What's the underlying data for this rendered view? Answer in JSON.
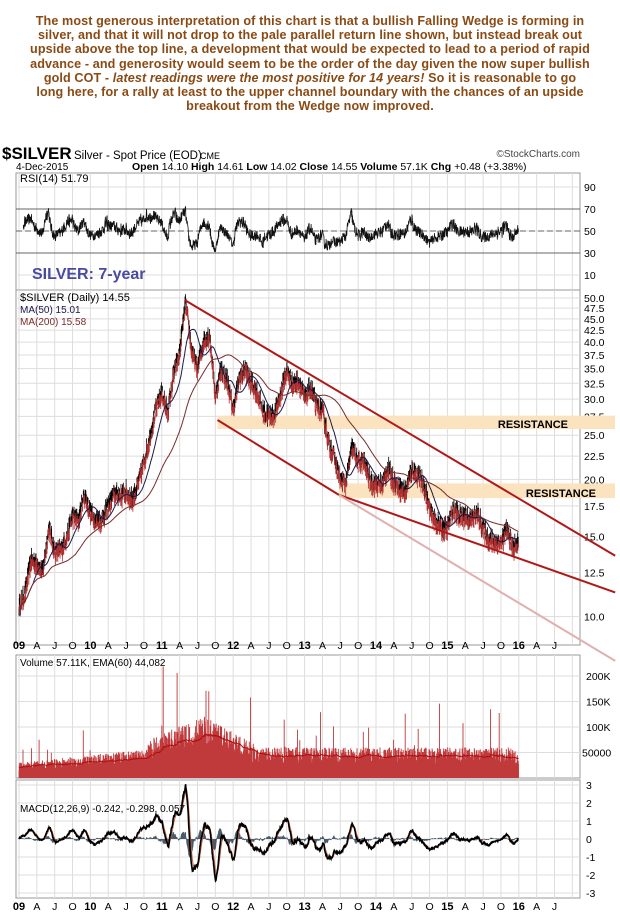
{
  "annotation": {
    "part1": "The most generous interpretation of this chart is that a bullish Falling Wedge is forming in silver, and that it will not drop to the pale parallel return line shown, but instead break out upside above the top line, a development that would be expected to lead to a period of rapid advance - and generosity would seem to be the order of the day given the now super bullish gold COT - ",
    "italic": "latest readings were the most positive for 14 years!",
    "part2": " So it is reasonable to go long here, for a rally at least to the upper channel boundary with the chances of an upside breakout from the Wedge now improved."
  },
  "header": {
    "symbol": "$SILVER",
    "description": "Silver - Spot Price (EOD)",
    "exchange": "CME",
    "watermark": "©StockCharts.com",
    "date": "4-Dec-2015",
    "open_label": "Open",
    "open": "14.10",
    "high_label": "High",
    "high": "14.61",
    "low_label": "Low",
    "low": "14.02",
    "close_label": "Close",
    "close": "14.55",
    "volume_label": "Volume",
    "volume": "57.1K",
    "chg_label": "Chg",
    "chg": "+0.48 (+3.38%)"
  },
  "overlay_title": "SILVER: 7-year",
  "colors": {
    "annotation": "#8a4a14",
    "price_up": "#000000",
    "price_down": "#b03030",
    "ma50": "#1a1a4a",
    "ma200": "#7a2a2a",
    "trendline": "#b01818",
    "return_line": "#e0b0b0",
    "resistance": "#fbe3c0",
    "volume": "#c0393b",
    "title_overlay": "#4a4aa0"
  },
  "chart_data": [
    {
      "type": "line",
      "panel": "rsi",
      "legend": "RSI(14) 51.79",
      "ylim": [
        0,
        100
      ],
      "ticks": [
        "90",
        "70",
        "50",
        "30",
        "10"
      ],
      "reference_levels": [
        70,
        50,
        30
      ],
      "last": 51.79
    },
    {
      "type": "line",
      "panel": "price",
      "scale": "log",
      "legend": "$SILVER (Daily) 14.55",
      "ma_legends": [
        "MA(50) 15.01",
        "MA(200) 15.58"
      ],
      "ticks": [
        "50.0",
        "47.5",
        "45.0",
        "42.5",
        "40.0",
        "37.5",
        "35.0",
        "32.5",
        "30.0",
        "27.5",
        "25.0",
        "22.5",
        "20.0",
        "17.5",
        "15.0",
        "12.5",
        "10.0"
      ],
      "x_start": "2009-01",
      "x_step": "month",
      "monthly_close": [
        11.2,
        13.2,
        13.1,
        12.5,
        15.6,
        13.9,
        13.9,
        14.9,
        16.6,
        16.2,
        18.5,
        16.9,
        16.2,
        16.3,
        17.5,
        18.6,
        18.4,
        18.7,
        18.0,
        19.4,
        21.8,
        24.6,
        28.4,
        30.9,
        27.9,
        33.9,
        37.9,
        48.6,
        38.2,
        34.9,
        40.1,
        41.5,
        30.4,
        34.8,
        32.8,
        28.2,
        33.2,
        34.9,
        32.5,
        31.1,
        28.1,
        27.5,
        27.7,
        30.8,
        34.6,
        32.2,
        32.9,
        30.0,
        31.9,
        28.7,
        28.3,
        24.1,
        22.3,
        19.8,
        19.7,
        23.5,
        21.7,
        21.8,
        19.8,
        19.5,
        19.4,
        21.1,
        19.7,
        19.1,
        18.7,
        21.0,
        20.4,
        19.5,
        17.1,
        16.2,
        15.6,
        15.6,
        17.2,
        16.6,
        16.6,
        16.3,
        16.8,
        15.6,
        14.7,
        14.6,
        14.5,
        15.5,
        14.1,
        14.55
      ],
      "trendlines": [
        {
          "name": "wedge-upper",
          "from": [
            "2011.32",
            49.5
          ],
          "to": [
            "2017.35",
            13.6
          ]
        },
        {
          "name": "wedge-lower",
          "from": [
            "2013.48",
            18.5
          ],
          "to": [
            "2017.35",
            11.3
          ]
        },
        {
          "name": "channel-lower",
          "from": [
            "2011.78",
            27.0
          ],
          "to": [
            "2013.48",
            18.5
          ]
        },
        {
          "name": "return-line",
          "from": [
            "2013.48",
            18.5
          ],
          "to": [
            "2017.35",
            8.0
          ]
        }
      ],
      "resistance_zones": [
        {
          "label": "RESISTANCE",
          "low": 25.8,
          "high": 27.6,
          "from": "2011.78"
        },
        {
          "label": "RESISTANCE",
          "low": 18.2,
          "high": 19.6,
          "from": "2013.48"
        }
      ]
    },
    {
      "type": "bar",
      "panel": "volume",
      "legend": "Volume 57.11K, EMA(60) 44,082",
      "ticks": [
        "200K",
        "150K",
        "100K",
        "50000"
      ],
      "last": 57110,
      "ema": 44082
    },
    {
      "type": "line",
      "panel": "macd",
      "legend": "MACD(12,26,9) -0.242, -0.298, 0.057",
      "ticks": [
        "3",
        "2",
        "1",
        "0",
        "-1",
        "-2",
        "-3"
      ],
      "macd": -0.242,
      "signal": -0.298,
      "histogram": 0.057
    }
  ],
  "x_axis": [
    "09",
    "A",
    "J",
    "O",
    "10",
    "A",
    "J",
    "O",
    "11",
    "A",
    "J",
    "O",
    "12",
    "A",
    "J",
    "O",
    "13",
    "A",
    "J",
    "O",
    "14",
    "A",
    "J",
    "O",
    "15",
    "A",
    "J",
    "O",
    "16",
    "A",
    "J"
  ]
}
